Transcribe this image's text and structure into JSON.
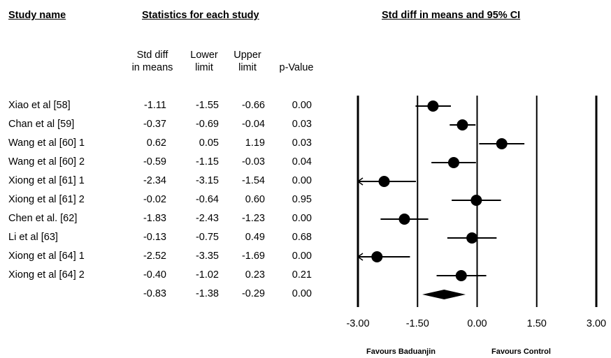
{
  "headers": {
    "study_name": "Study name",
    "statistics": "Statistics for each study",
    "plot": "Std diff in means and 95% CI"
  },
  "columns": {
    "std_diff": [
      "Std diff",
      "in means"
    ],
    "lower": [
      "Lower",
      "limit"
    ],
    "upper": [
      "Upper",
      "limit"
    ],
    "pvalue": [
      "",
      "p-Value"
    ]
  },
  "footer": {
    "favours_left": "Favours Baduanjin",
    "favours_right": "Favours Control"
  },
  "chart_data": {
    "type": "forest",
    "xlim": [
      -3.0,
      3.0
    ],
    "x_ticks": [
      -3.0,
      -1.5,
      0.0,
      1.5,
      3.0
    ],
    "x_tick_labels": [
      "-3.00",
      "-1.50",
      "0.00",
      "1.50",
      "3.00"
    ],
    "studies": [
      {
        "name": "Xiao et al  [58]",
        "smd": -1.11,
        "lower": -1.55,
        "upper": -0.66,
        "p": "0.00",
        "smd_label": "-1.11",
        "lower_label": "-1.55",
        "upper_label": "-0.66"
      },
      {
        "name": "Chan et al [59]",
        "smd": -0.37,
        "lower": -0.69,
        "upper": -0.04,
        "p": "0.03",
        "smd_label": "-0.37",
        "lower_label": "-0.69",
        "upper_label": "-0.04"
      },
      {
        "name": "Wang et al [60] 1",
        "smd": 0.62,
        "lower": 0.05,
        "upper": 1.19,
        "p": "0.03",
        "smd_label": "0.62",
        "lower_label": "0.05",
        "upper_label": "1.19"
      },
      {
        "name": "Wang et al [60] 2",
        "smd": -0.59,
        "lower": -1.15,
        "upper": -0.03,
        "p": "0.04",
        "smd_label": "-0.59",
        "lower_label": "-1.15",
        "upper_label": "-0.03"
      },
      {
        "name": "Xiong et al [61] 1",
        "smd": -2.34,
        "lower": -3.15,
        "upper": -1.54,
        "p": "0.00",
        "smd_label": "-2.34",
        "lower_label": "-3.15",
        "upper_label": "-1.54"
      },
      {
        "name": "Xiong et al [61] 2",
        "smd": -0.02,
        "lower": -0.64,
        "upper": 0.6,
        "p": "0.95",
        "smd_label": "-0.02",
        "lower_label": "-0.64",
        "upper_label": "0.60"
      },
      {
        "name": "Chen et al. [62]",
        "smd": -1.83,
        "lower": -2.43,
        "upper": -1.23,
        "p": "0.00",
        "smd_label": "-1.83",
        "lower_label": "-2.43",
        "upper_label": "-1.23"
      },
      {
        "name": "Li et al [63]",
        "smd": -0.13,
        "lower": -0.75,
        "upper": 0.49,
        "p": "0.68",
        "smd_label": "-0.13",
        "lower_label": "-0.75",
        "upper_label": "0.49"
      },
      {
        "name": "Xiong et al [64] 1",
        "smd": -2.52,
        "lower": -3.35,
        "upper": -1.69,
        "p": "0.00",
        "smd_label": "-2.52",
        "lower_label": "-3.35",
        "upper_label": "-1.69"
      },
      {
        "name": "Xiong et al [64] 2",
        "smd": -0.4,
        "lower": -1.02,
        "upper": 0.23,
        "p": "0.21",
        "smd_label": "-0.40",
        "lower_label": "-1.02",
        "upper_label": "0.23"
      }
    ],
    "pooled": {
      "name": "",
      "smd": -0.83,
      "lower": -1.38,
      "upper": -0.29,
      "p": "0.00",
      "smd_label": "-0.83",
      "lower_label": "-1.38",
      "upper_label": "-0.29"
    }
  }
}
